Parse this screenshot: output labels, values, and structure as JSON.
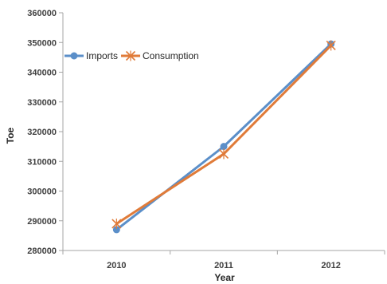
{
  "chart_data": {
    "type": "line",
    "title": "",
    "xlabel": "Year",
    "ylabel": "Toe",
    "categories": [
      "2010",
      "2011",
      "2012"
    ],
    "ylim": [
      280000,
      360000
    ],
    "yticks": [
      "280000",
      "290000",
      "300000",
      "310000",
      "320000",
      "330000",
      "340000",
      "350000",
      "360000"
    ],
    "grid": false,
    "legend": "top-left",
    "series": [
      {
        "name": "Imports",
        "values": [
          287000,
          315000,
          349500
        ],
        "color": "#5B8FC9",
        "marker": "circle"
      },
      {
        "name": "Consumption",
        "values": [
          289000,
          312500,
          349000
        ],
        "color": "#E07B39",
        "marker": "star"
      }
    ]
  }
}
